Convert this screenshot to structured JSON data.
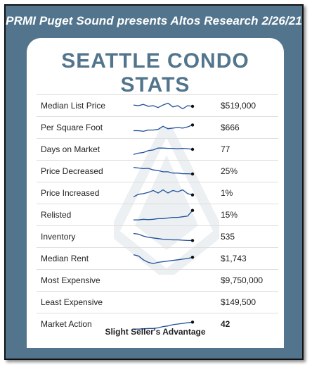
{
  "header": "PRMI Puget Sound presents Altos Research 2/26/21",
  "title": "SEATTLE CONDO STATS",
  "rows": [
    {
      "label": "Median List Price",
      "value": "$519,000",
      "spark": [
        0.55,
        0.5,
        0.6,
        0.45,
        0.5,
        0.35,
        0.55,
        0.7,
        0.4,
        0.5,
        0.25,
        0.5,
        0.45
      ]
    },
    {
      "label": "Per Square Foot",
      "value": "$666",
      "spark": [
        0.25,
        0.25,
        0.2,
        0.3,
        0.3,
        0.35,
        0.6,
        0.4,
        0.45,
        0.5,
        0.45,
        0.55,
        0.7
      ]
    },
    {
      "label": "Days on Market",
      "value": "77",
      "spark": [
        0.1,
        0.2,
        0.25,
        0.4,
        0.45,
        0.6,
        0.6,
        0.58,
        0.58,
        0.55,
        0.58,
        0.55,
        0.5
      ]
    },
    {
      "label": "Price Decreased",
      "value": "25%",
      "spark": [
        0.8,
        0.75,
        0.7,
        0.72,
        0.6,
        0.55,
        0.45,
        0.45,
        0.35,
        0.35,
        0.3,
        0.3,
        0.28
      ]
    },
    {
      "label": "Price Increased",
      "value": "1%",
      "spark": [
        0.2,
        0.4,
        0.45,
        0.55,
        0.7,
        0.5,
        0.75,
        0.5,
        0.7,
        0.6,
        0.75,
        0.45,
        0.35
      ]
    },
    {
      "label": "Relisted",
      "value": "15%",
      "spark": [
        0.1,
        0.1,
        0.15,
        0.12,
        0.15,
        0.2,
        0.2,
        0.25,
        0.3,
        0.3,
        0.35,
        0.4,
        0.85
      ]
    },
    {
      "label": "Inventory",
      "value": "535",
      "spark": [
        0.75,
        0.7,
        0.55,
        0.45,
        0.4,
        0.35,
        0.3,
        0.28,
        0.25,
        0.25,
        0.22,
        0.2,
        0.2
      ]
    },
    {
      "label": "Median Rent",
      "value": "$1,743",
      "spark": [
        0.8,
        0.7,
        0.4,
        0.2,
        0.1,
        0.2,
        0.25,
        0.3,
        0.35,
        0.4,
        0.45,
        0.5,
        0.6
      ]
    },
    {
      "label": "Most Expensive",
      "value": "$9,750,000",
      "spark": null
    },
    {
      "label": "Least Expensive",
      "value": "$149,500",
      "spark": null
    },
    {
      "label": "Market Action",
      "value": "42",
      "bold": true,
      "spark": [
        0.1,
        0.1,
        0.12,
        0.15,
        0.15,
        0.2,
        0.3,
        0.35,
        0.45,
        0.5,
        0.55,
        0.6,
        0.65
      ]
    }
  ],
  "footer": "Slight Seller's Advantage",
  "colors": {
    "frame": "#52758d",
    "title": "#52758d",
    "spark": "#1f4f9a"
  }
}
